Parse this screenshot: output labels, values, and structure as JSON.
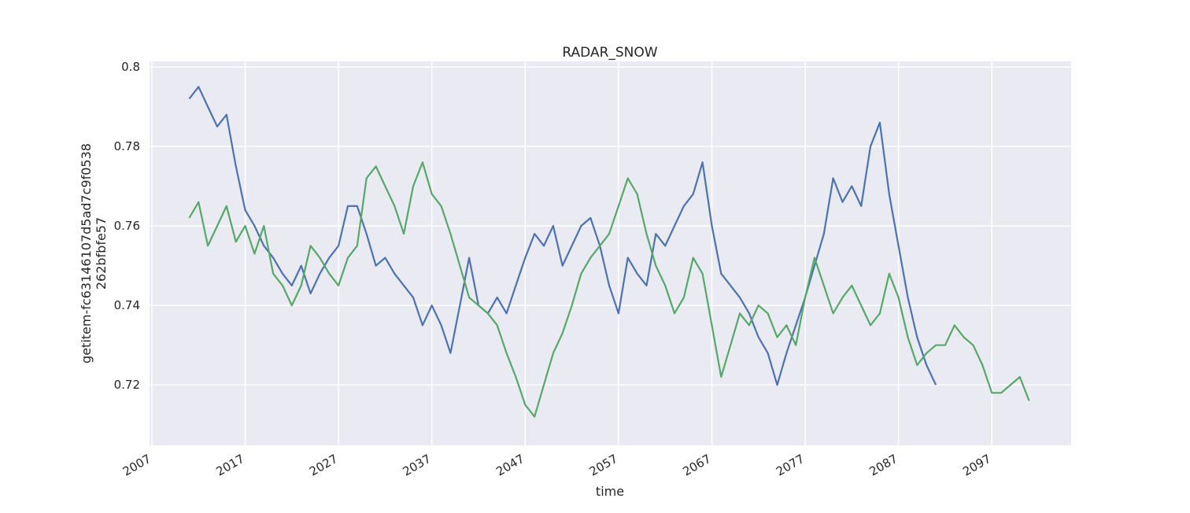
{
  "chart_data": {
    "type": "line",
    "title": "RADAR_SNOW",
    "xlabel": "time",
    "ylabel": [
      "getitem-fc63146107d5ad7c9f0538",
      "262bfbfe57"
    ],
    "xlim": [
      2006.75,
      2105.5
    ],
    "xticks": [
      2007,
      2017,
      2027,
      2037,
      2047,
      2057,
      2067,
      2077,
      2087,
      2097
    ],
    "ylim": [
      0.7048,
      0.8014
    ],
    "yticks": [
      0.72,
      0.74,
      0.76,
      0.78,
      0.8
    ],
    "grid": true,
    "background": "#eaeaf2",
    "series": [
      {
        "color": "#4c72b0",
        "x": [
          2011,
          2012,
          2013,
          2014,
          2015,
          2016,
          2017,
          2018,
          2019,
          2020,
          2021,
          2022,
          2023,
          2024,
          2025,
          2026,
          2027,
          2028,
          2029,
          2030,
          2031,
          2032,
          2033,
          2034,
          2035,
          2036,
          2037,
          2038,
          2039,
          2040,
          2041,
          2042,
          2043,
          2044,
          2045,
          2046,
          2047,
          2048,
          2049,
          2050,
          2051,
          2052,
          2053,
          2054,
          2055,
          2056,
          2057,
          2058,
          2059,
          2060,
          2061,
          2062,
          2063,
          2064,
          2065,
          2066,
          2067,
          2068,
          2069,
          2070,
          2071,
          2072,
          2073,
          2074,
          2075,
          2076,
          2077,
          2078,
          2079,
          2080,
          2081,
          2082,
          2083,
          2084,
          2085,
          2086,
          2087,
          2088,
          2089,
          2090,
          2091
        ],
        "values": [
          0.792,
          0.795,
          0.79,
          0.785,
          0.788,
          0.775,
          0.764,
          0.76,
          0.755,
          0.752,
          0.748,
          0.745,
          0.75,
          0.743,
          0.748,
          0.752,
          0.755,
          0.765,
          0.765,
          0.758,
          0.75,
          0.752,
          0.748,
          0.745,
          0.742,
          0.735,
          0.74,
          0.735,
          0.728,
          0.74,
          0.752,
          0.74,
          0.738,
          0.742,
          0.738,
          0.745,
          0.752,
          0.758,
          0.755,
          0.76,
          0.75,
          0.755,
          0.76,
          0.762,
          0.755,
          0.745,
          0.738,
          0.752,
          0.748,
          0.745,
          0.758,
          0.755,
          0.76,
          0.765,
          0.768,
          0.776,
          0.76,
          0.748,
          0.745,
          0.742,
          0.738,
          0.732,
          0.728,
          0.72,
          0.728,
          0.735,
          0.742,
          0.75,
          0.758,
          0.772,
          0.766,
          0.77,
          0.765,
          0.78,
          0.786,
          0.768,
          0.755,
          0.742,
          0.732,
          0.725,
          0.72
        ]
      },
      {
        "color": "#55a868",
        "x": [
          2011,
          2012,
          2013,
          2014,
          2015,
          2016,
          2017,
          2018,
          2019,
          2020,
          2021,
          2022,
          2023,
          2024,
          2025,
          2026,
          2027,
          2028,
          2029,
          2030,
          2031,
          2032,
          2033,
          2034,
          2035,
          2036,
          2037,
          2038,
          2039,
          2040,
          2041,
          2042,
          2043,
          2044,
          2045,
          2046,
          2047,
          2048,
          2049,
          2050,
          2051,
          2052,
          2053,
          2054,
          2055,
          2056,
          2057,
          2058,
          2059,
          2060,
          2061,
          2062,
          2063,
          2064,
          2065,
          2066,
          2067,
          2068,
          2069,
          2070,
          2071,
          2072,
          2073,
          2074,
          2075,
          2076,
          2077,
          2078,
          2079,
          2080,
          2081,
          2082,
          2083,
          2084,
          2085,
          2086,
          2087,
          2088,
          2089,
          2090,
          2091,
          2092,
          2093,
          2094,
          2095,
          2096,
          2097,
          2098,
          2099,
          2100,
          2101
        ],
        "values": [
          0.762,
          0.766,
          0.755,
          0.76,
          0.765,
          0.756,
          0.76,
          0.753,
          0.76,
          0.748,
          0.745,
          0.74,
          0.745,
          0.755,
          0.752,
          0.748,
          0.745,
          0.752,
          0.755,
          0.772,
          0.775,
          0.77,
          0.765,
          0.758,
          0.77,
          0.776,
          0.768,
          0.765,
          0.758,
          0.75,
          0.742,
          0.74,
          0.738,
          0.735,
          0.728,
          0.722,
          0.715,
          0.712,
          0.72,
          0.728,
          0.733,
          0.74,
          0.748,
          0.752,
          0.755,
          0.758,
          0.765,
          0.772,
          0.768,
          0.758,
          0.75,
          0.745,
          0.738,
          0.742,
          0.752,
          0.748,
          0.735,
          0.722,
          0.73,
          0.738,
          0.735,
          0.74,
          0.738,
          0.732,
          0.735,
          0.73,
          0.742,
          0.752,
          0.745,
          0.738,
          0.742,
          0.745,
          0.74,
          0.735,
          0.738,
          0.748,
          0.742,
          0.732,
          0.725,
          0.728,
          0.73,
          0.73,
          0.735,
          0.732,
          0.73,
          0.725,
          0.718,
          0.718,
          0.72,
          0.722,
          0.716
        ]
      }
    ]
  }
}
